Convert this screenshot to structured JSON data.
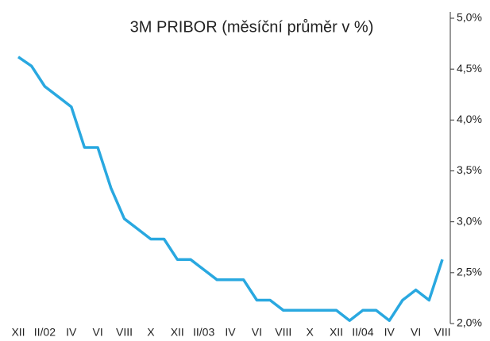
{
  "chart_data": {
    "type": "line",
    "title": "3M PRIBOR (měsíční průměr v %)",
    "categories": [
      "XII",
      null,
      "II/02",
      null,
      "IV",
      null,
      "VI",
      null,
      "VIII",
      null,
      "X",
      null,
      "XII",
      null,
      "II/03",
      null,
      "IV",
      null,
      "VI",
      null,
      "VIII",
      null,
      "X",
      null,
      "XII",
      null,
      "II/04",
      null,
      "IV",
      null,
      "VI",
      null,
      "VIII"
    ],
    "series": [
      {
        "name": "3M PRIBOR",
        "color": "#29a8e0",
        "values": [
          4.62,
          4.53,
          4.33,
          4.23,
          4.13,
          3.73,
          3.73,
          3.33,
          3.03,
          2.93,
          2.83,
          2.83,
          2.63,
          2.63,
          2.53,
          2.43,
          2.43,
          2.43,
          2.23,
          2.23,
          2.13,
          2.13,
          2.13,
          2.13,
          2.13,
          2.03,
          2.13,
          2.13,
          2.03,
          2.23,
          2.33,
          2.23,
          2.63
        ]
      }
    ],
    "ylim": [
      2,
      5
    ],
    "yticks": [
      {
        "value": 2,
        "label": "2,0%"
      },
      {
        "value": 2.5,
        "label": "2,5%"
      },
      {
        "value": 3,
        "label": "3,0%"
      },
      {
        "value": 3.5,
        "label": "3,5%"
      },
      {
        "value": 4,
        "label": "4,0%"
      },
      {
        "value": 4.5,
        "label": "4,5%"
      },
      {
        "value": 5,
        "label": "5,0%"
      }
    ],
    "y_axis_side": "right",
    "grid": false
  }
}
